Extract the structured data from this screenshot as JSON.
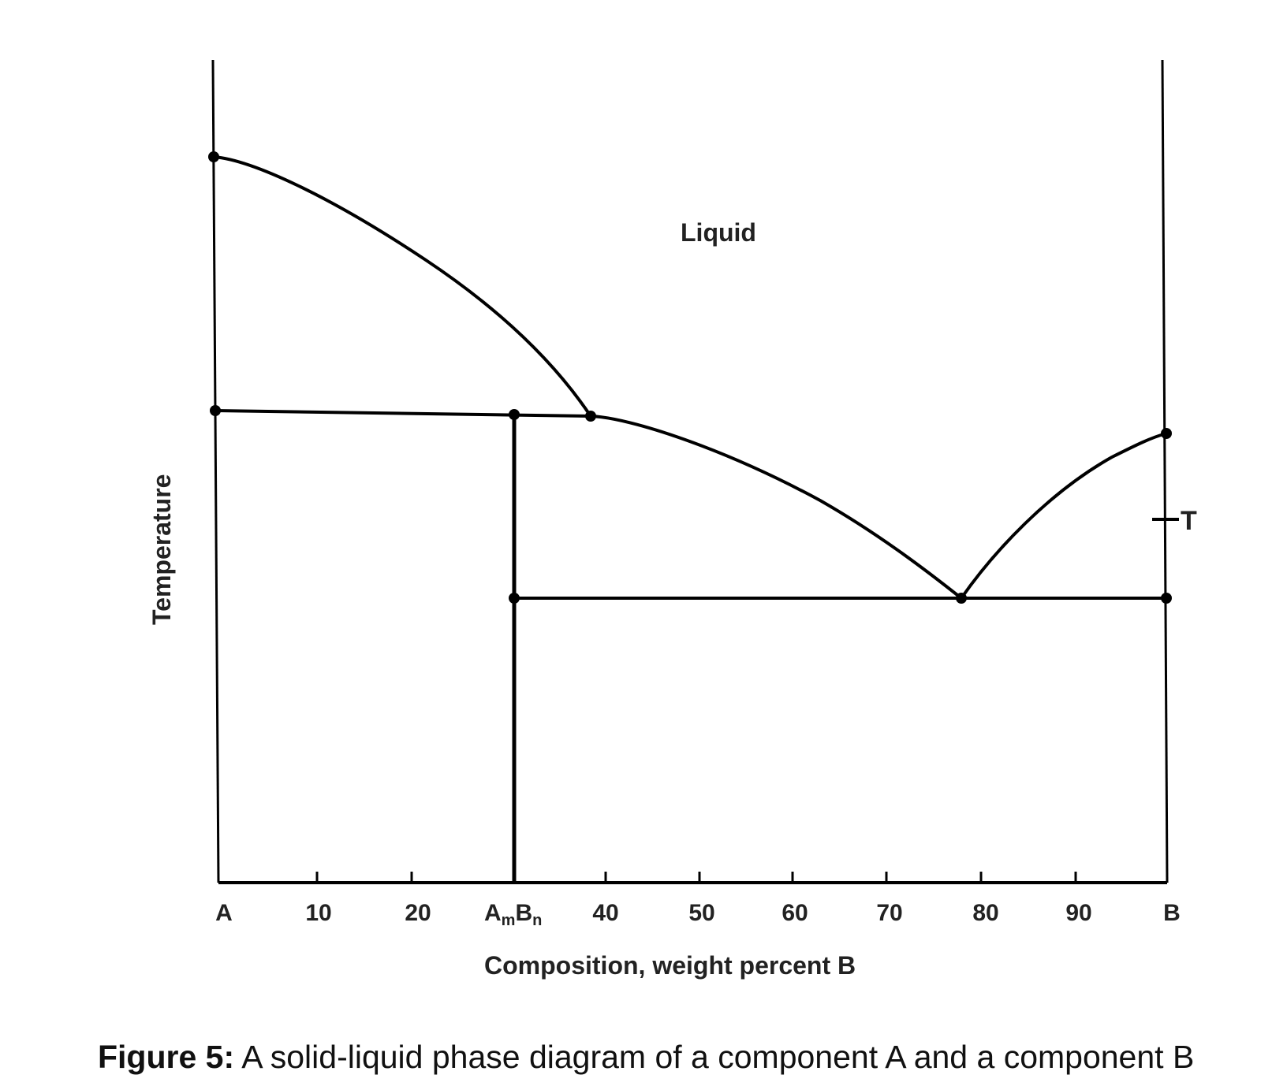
{
  "diagram": {
    "region_label": "Liquid",
    "y_axis_label": "Temperature",
    "x_axis_label": "Composition, weight percent B",
    "x_tick_labels": [
      "A",
      "10",
      "20",
      "40",
      "50",
      "60",
      "70",
      "80",
      "90",
      "B"
    ],
    "compound_label": {
      "base1": "A",
      "sub1": "m",
      "base2": "B",
      "sub2": "n"
    },
    "temperature_marker": "T",
    "line_color": "#000000"
  },
  "caption": {
    "prefix": "Figure 5:",
    "text": " A solid-liquid phase diagram of a component A and a component B"
  }
}
